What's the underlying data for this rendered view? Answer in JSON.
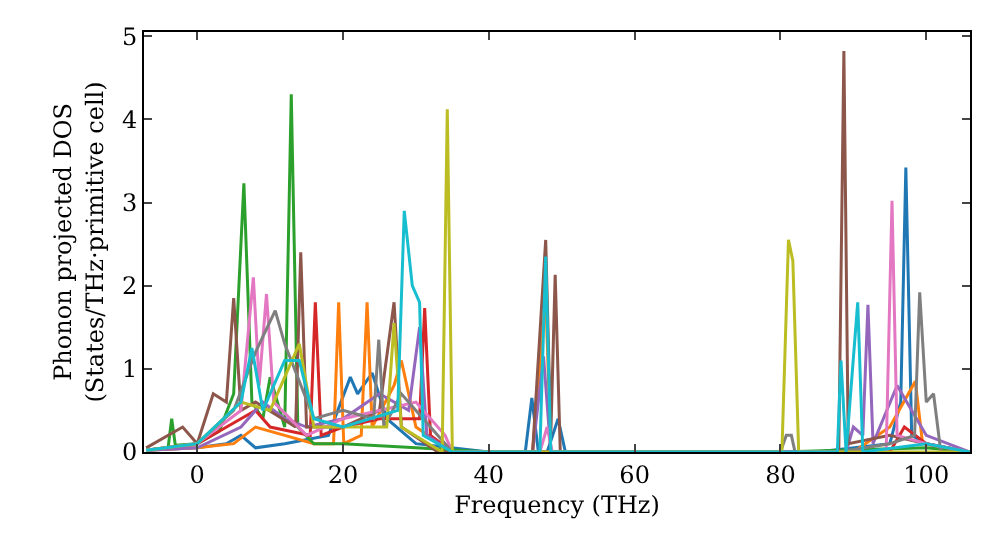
{
  "chart_data": {
    "type": "line",
    "xlabel": "Frequency (THz)",
    "ylabel": "Phonon projected DOS\n(States/THz·primitive cell)",
    "xlim": [
      -7.3,
      106
    ],
    "ylim": [
      0,
      5.05
    ],
    "xticks": [
      0,
      20,
      40,
      60,
      80,
      100
    ],
    "yticks": [
      0,
      1,
      2,
      3,
      4,
      5
    ],
    "grid": false,
    "legend": false,
    "marker": "none",
    "line_style": "solid",
    "series": [
      {
        "color": "#1f77b4",
        "x": [
          -7,
          0,
          4,
          6,
          8,
          12,
          18,
          21,
          22,
          24,
          26,
          30,
          40,
          45,
          45.9,
          46.8,
          48,
          49.5,
          50.5,
          60,
          85,
          95,
          96.5,
          97.2,
          98,
          100,
          106
        ],
        "values": [
          0.02,
          0.05,
          0.1,
          0.2,
          0.05,
          0.1,
          0.2,
          0.9,
          0.7,
          0.95,
          0.4,
          0.1,
          0,
          0,
          0.65,
          0,
          0,
          0.4,
          0,
          0,
          0,
          0.1,
          0.6,
          3.42,
          0.2,
          0.1,
          0
        ]
      },
      {
        "color": "#ff7f0e",
        "x": [
          -7,
          0,
          5,
          8,
          12,
          16,
          18.7,
          19.4,
          20.1,
          22.5,
          23.3,
          24,
          27,
          28,
          30,
          35,
          46,
          47.8,
          48.5,
          60,
          90,
          95,
          98.5,
          99.5,
          106
        ],
        "values": [
          0.02,
          0.05,
          0.1,
          0.3,
          0.2,
          0.1,
          0.1,
          1.8,
          0.1,
          0.2,
          1.8,
          0.3,
          0.8,
          1.1,
          0.3,
          0,
          0,
          1.9,
          0,
          0,
          0,
          0.3,
          0.85,
          0.1,
          0
        ]
      },
      {
        "color": "#2ca02c",
        "x": [
          -7,
          -4,
          -3.5,
          -3,
          0,
          3,
          5,
          6.4,
          7.5,
          9,
          10,
          12,
          12.9,
          13.8,
          16,
          20,
          30,
          40,
          60,
          80,
          100,
          106
        ],
        "values": [
          0.02,
          0.05,
          0.4,
          0.08,
          0.1,
          0.25,
          0.7,
          3.23,
          0.6,
          0.4,
          0.9,
          0.3,
          4.3,
          0.3,
          0.1,
          0.1,
          0.05,
          0,
          0,
          0,
          0.05,
          0
        ]
      },
      {
        "color": "#d62728",
        "x": [
          -7,
          0,
          6,
          8,
          10,
          15.5,
          16.2,
          17,
          20,
          25,
          30.5,
          31.2,
          32,
          35,
          40,
          95,
          97,
          100,
          106
        ],
        "values": [
          0.02,
          0.1,
          0.4,
          0.5,
          0.3,
          0.2,
          1.8,
          0.2,
          0.3,
          0.4,
          0.4,
          1.73,
          0.2,
          0,
          0,
          0,
          0.3,
          0.1,
          0
        ]
      },
      {
        "color": "#9467bd",
        "x": [
          -7,
          0,
          6,
          9,
          12,
          15,
          20,
          25,
          29,
          30.5,
          31.5,
          35,
          46,
          47.5,
          48.5,
          60,
          89,
          90,
          91.3,
          92,
          92.7,
          96,
          100,
          106
        ],
        "values": [
          0.02,
          0.05,
          0.3,
          0.6,
          0.4,
          0.3,
          0.4,
          0.7,
          0.5,
          1.5,
          0.2,
          0,
          0,
          1.15,
          0,
          0,
          0,
          0.3,
          0.2,
          1.77,
          0.1,
          0.8,
          0.2,
          0
        ]
      },
      {
        "color": "#8c564b",
        "x": [
          -7,
          -2,
          0,
          2.2,
          4,
          5,
          6,
          8,
          13.5,
          14.2,
          15,
          20,
          25,
          27,
          28,
          33,
          46,
          47.8,
          48.5,
          49.1,
          49.8,
          60,
          88,
          88.7,
          89.3,
          95,
          100,
          106
        ],
        "values": [
          0.05,
          0.3,
          0.1,
          0.7,
          0.6,
          1.85,
          0.5,
          0.6,
          0.3,
          2.4,
          0.3,
          0.3,
          0.5,
          1.8,
          0.3,
          0,
          0,
          2.55,
          0.2,
          2.13,
          0,
          0,
          0,
          4.82,
          0.1,
          0.2,
          0.1,
          0
        ]
      },
      {
        "color": "#e377c2",
        "x": [
          -7,
          0,
          6,
          7.7,
          8.5,
          9.5,
          10.5,
          15,
          20,
          25,
          30,
          34,
          35,
          47,
          48,
          48.7,
          60,
          94.5,
          95.3,
          96,
          100,
          106
        ],
        "values": [
          0.02,
          0.1,
          0.5,
          2.1,
          0.8,
          1.9,
          0.6,
          0.2,
          0.4,
          0.5,
          0.6,
          0.2,
          0,
          0,
          0.3,
          0,
          0,
          0,
          3.02,
          0.2,
          0.1,
          0
        ]
      },
      {
        "color": "#7f7f7f",
        "x": [
          -7,
          0,
          5,
          8,
          10.7,
          12,
          16,
          20,
          24.2,
          24.9,
          25.6,
          28,
          30,
          35,
          80,
          80.8,
          81.5,
          82,
          88,
          95,
          98.4,
          99.1,
          100,
          101,
          102,
          106
        ],
        "values": [
          0.02,
          0.1,
          0.5,
          1.2,
          1.7,
          1.3,
          0.4,
          0.5,
          0.4,
          1.35,
          0.3,
          0.7,
          0.5,
          0,
          0,
          0.2,
          0.2,
          0,
          0,
          0.1,
          0.2,
          1.92,
          0.6,
          0.7,
          0,
          0
        ]
      },
      {
        "color": "#bcbd22",
        "x": [
          -7,
          0,
          6,
          10,
          14,
          16,
          26,
          27,
          28,
          33.6,
          34.3,
          35,
          40,
          80.2,
          81.1,
          81.7,
          82.5,
          90,
          106
        ],
        "values": [
          0.02,
          0.1,
          0.6,
          0.5,
          1.3,
          0.3,
          0.3,
          1.55,
          0.3,
          0,
          4.12,
          0,
          0,
          0,
          2.55,
          2.3,
          0,
          0,
          0
        ]
      },
      {
        "color": "#17becf",
        "x": [
          -7,
          0,
          6,
          7.5,
          9,
          12,
          14,
          16,
          20,
          27.5,
          28.4,
          29.5,
          30.5,
          31,
          35,
          47,
          47.8,
          48.5,
          60,
          87.8,
          88.3,
          89,
          90.6,
          91.3,
          100,
          106
        ],
        "values": [
          0.02,
          0.1,
          0.6,
          1.25,
          0.5,
          1.1,
          1.1,
          0.4,
          0.3,
          0.5,
          2.9,
          2.0,
          1.8,
          0.2,
          0,
          0,
          2.35,
          0,
          0,
          0,
          1.1,
          0,
          1.8,
          0,
          0.1,
          0
        ]
      }
    ]
  }
}
